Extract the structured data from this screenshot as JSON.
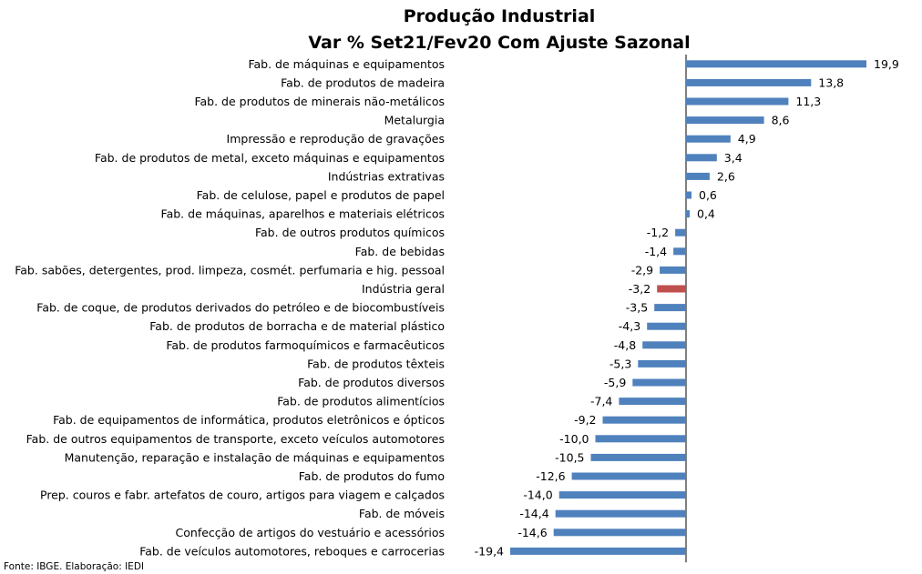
{
  "chart_data": {
    "type": "bar",
    "orientation": "horizontal",
    "title": "Produção Industrial",
    "subtitle": "Var % Set21/Fev20 Com Ajuste Sazonal",
    "source": "Fonte: IBGE. Elaboração: IEDI",
    "colors": {
      "bar": "#4f81bd",
      "highlight": "#c0504d",
      "axis": "#000000"
    },
    "highlight_category": "Indústria geral",
    "categories": [
      "Fab. de máquinas e equipamentos",
      "Fab. de produtos de madeira",
      "Fab. de produtos de minerais não-metálicos",
      "Metalurgia",
      "Impressão e reprodução de gravações",
      "Fab. de produtos de metal, exceto máquinas e equipamentos",
      "Indústrias extrativas",
      "Fab. de celulose, papel e produtos de papel",
      "Fab. de máquinas, aparelhos e materiais elétricos",
      "Fab. de outros produtos químicos",
      "Fab. de bebidas",
      "Fab. sabões, detergentes, prod. limpeza, cosmét. perfumaria e hig. pessoal",
      "Indústria geral",
      "Fab. de coque, de produtos derivados do petróleo e de biocombustíveis",
      "Fab. de produtos de borracha e de material plástico",
      "Fab. de produtos farmoquímicos e farmacêuticos",
      "Fab. de produtos têxteis",
      "Fab. de produtos diversos",
      "Fab. de produtos alimentícios",
      "Fab. de equipamentos de informática, produtos eletrônicos e ópticos",
      "Fab. de outros equipamentos de transporte, exceto veículos automotores",
      "Manutenção, reparação e instalação de máquinas e equipamentos",
      "Fab. de produtos do fumo",
      "Prep. couros e fabr. artefatos de couro, artigos para viagem e calçados",
      "Fab. de móveis",
      "Confecção de artigos do vestuário e acessórios",
      "Fab. de veículos automotores, reboques e carrocerias"
    ],
    "values": [
      19.9,
      13.8,
      11.3,
      8.6,
      4.9,
      3.4,
      2.6,
      0.6,
      0.4,
      -1.2,
      -1.4,
      -2.9,
      -3.2,
      -3.5,
      -4.3,
      -4.8,
      -5.3,
      -5.9,
      -7.4,
      -9.2,
      -10.0,
      -10.5,
      -12.6,
      -14.0,
      -14.4,
      -14.6,
      -19.4
    ],
    "value_labels": [
      "19,9",
      "13,8",
      "11,3",
      "8,6",
      "4,9",
      "3,4",
      "2,6",
      "0,6",
      "0,4",
      "-1,2",
      "-1,4",
      "-2,9",
      "-3,2",
      "-3,5",
      "-4,3",
      "-4,8",
      "-5,3",
      "-5,9",
      "-7,4",
      "-9,2",
      "-10,0",
      "-10,5",
      "-12,6",
      "-14,0",
      "-14,4",
      "-14,6",
      "-19,4"
    ],
    "xlim": [
      -20,
      20
    ]
  }
}
